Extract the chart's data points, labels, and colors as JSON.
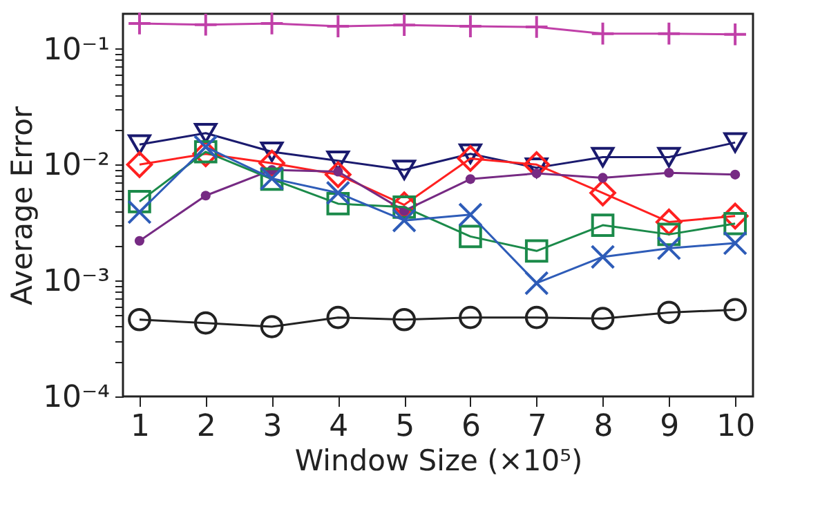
{
  "chart_data": {
    "type": "line",
    "xlabel": "Window Size (×10⁵)",
    "ylabel": "Average Error",
    "log": "y",
    "grid": false,
    "x": [
      1,
      2,
      3,
      4,
      5,
      6,
      7,
      8,
      9,
      10
    ],
    "xlim": [
      0.75,
      10.27
    ],
    "xticks": [
      1,
      2,
      3,
      4,
      5,
      6,
      7,
      8,
      9,
      10
    ],
    "ylim": [
      0.0001,
      0.2
    ],
    "yticks": [
      {
        "value": 0.0001,
        "label": "10⁻⁴"
      },
      {
        "value": 0.0002,
        "label": null
      },
      {
        "value": 0.0003,
        "label": null
      },
      {
        "value": 0.0004,
        "label": null
      },
      {
        "value": 0.0005,
        "label": null
      },
      {
        "value": 0.0006,
        "label": null
      },
      {
        "value": 0.0007,
        "label": null
      },
      {
        "value": 0.0008,
        "label": null
      },
      {
        "value": 0.0009,
        "label": null
      },
      {
        "value": 0.001,
        "label": "10⁻³"
      },
      {
        "value": 0.002,
        "label": null
      },
      {
        "value": 0.003,
        "label": null
      },
      {
        "value": 0.004,
        "label": null
      },
      {
        "value": 0.005,
        "label": null
      },
      {
        "value": 0.006,
        "label": null
      },
      {
        "value": 0.007,
        "label": null
      },
      {
        "value": 0.008,
        "label": null
      },
      {
        "value": 0.009,
        "label": null
      },
      {
        "value": 0.01,
        "label": "10⁻²"
      },
      {
        "value": 0.02,
        "label": null
      },
      {
        "value": 0.03,
        "label": null
      },
      {
        "value": 0.04,
        "label": null
      },
      {
        "value": 0.05,
        "label": null
      },
      {
        "value": 0.06,
        "label": null
      },
      {
        "value": 0.07,
        "label": null
      },
      {
        "value": 0.08,
        "label": null
      },
      {
        "value": 0.09,
        "label": null
      },
      {
        "value": 0.1,
        "label": "10⁻¹"
      }
    ],
    "line_style": "solid",
    "series": [
      {
        "color": "#c040a8",
        "marker": "cross",
        "values": [
          0.165,
          0.161,
          0.165,
          0.156,
          0.16,
          0.156,
          0.154,
          0.135,
          0.135,
          0.133
        ]
      },
      {
        "color": "#1a1a6e",
        "marker": "triangle-down",
        "values": [
          0.0149,
          0.0187,
          0.0129,
          0.0108,
          0.009,
          0.0124,
          0.0094,
          0.0116,
          0.0116,
          0.0155
        ]
      },
      {
        "color": "#ff2020",
        "marker": "diamond",
        "values": [
          0.01,
          0.0124,
          0.0103,
          0.0082,
          0.0045,
          0.0113,
          0.01,
          0.0057,
          0.0032,
          0.0036
        ]
      },
      {
        "color": "#762a83",
        "marker": "dot",
        "values": [
          0.0022,
          0.0054,
          0.009,
          0.0087,
          0.004,
          0.0075,
          0.0084,
          0.0077,
          0.0085,
          0.0082
        ]
      },
      {
        "color": "#1b8a4a",
        "marker": "square",
        "values": [
          0.0048,
          0.0129,
          0.0075,
          0.0046,
          0.0043,
          0.0024,
          0.0018,
          0.003,
          0.0025,
          0.0031
        ]
      },
      {
        "color": "#2e5cb8",
        "marker": "x",
        "values": [
          0.0039,
          0.0142,
          0.0076,
          0.0057,
          0.0033,
          0.0037,
          0.00095,
          0.0016,
          0.0019,
          0.0021
        ]
      },
      {
        "color": "#222222",
        "marker": "circle",
        "values": [
          0.00046,
          0.00043,
          0.0004,
          0.00048,
          0.00046,
          0.00048,
          0.00048,
          0.00047,
          0.00053,
          0.00056
        ]
      }
    ]
  }
}
